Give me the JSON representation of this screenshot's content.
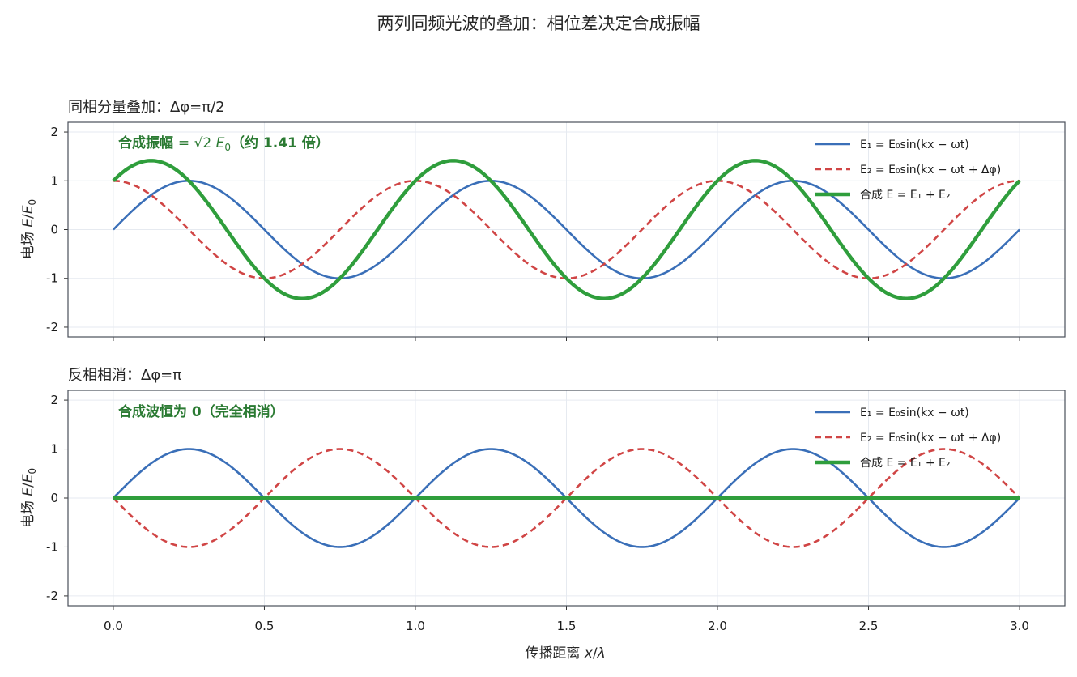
{
  "figure_title": "两列同频光波的叠加：相位差决定合成振幅",
  "x_axis_label": "传播距离 x/λ",
  "colors": {
    "e1": "#3a6fb8",
    "e2": "#d04545",
    "sum": "#2f9e3c",
    "annotation": "#2a7a32",
    "frame": "#4a4f5a",
    "grid": "#e6eaf0"
  },
  "chart_data": [
    {
      "type": "line",
      "title": "同相分量叠加：Δφ=π/2",
      "phase_difference": "π/2",
      "xlabel": "传播距离 x/λ",
      "ylabel": "电场 E/E₀",
      "xlim": [
        -0.15,
        3.15
      ],
      "ylim": [
        -2.2,
        2.2
      ],
      "xticks": [
        "0.0",
        "0.5",
        "1.0",
        "1.5",
        "2.0",
        "2.5",
        "3.0"
      ],
      "yticks": [
        "-2",
        "-1",
        "0",
        "1",
        "2"
      ],
      "grid": true,
      "legend_position": "top-right",
      "series": [
        {
          "name": "E₁ = E₀sin(kx − ωt)",
          "style": "solid",
          "formula": "sin(2πx)"
        },
        {
          "name": "E₂ = E₀sin(kx − ωt + Δφ)",
          "style": "dashed",
          "formula": "sin(2πx + π/2)"
        },
        {
          "name": "合成 E = E₁ + E₂",
          "style": "solid-thick",
          "formula": "√2·sin(2πx + π/4)"
        }
      ],
      "annotation": "合成振幅 = √2 E₀（约 1.41 倍）"
    },
    {
      "type": "line",
      "title": "反相相消：Δφ=π",
      "phase_difference": "π",
      "xlabel": "传播距离 x/λ",
      "ylabel": "电场 E/E₀",
      "xlim": [
        -0.15,
        3.15
      ],
      "ylim": [
        -2.2,
        2.2
      ],
      "xticks": [
        "0.0",
        "0.5",
        "1.0",
        "1.5",
        "2.0",
        "2.5",
        "3.0"
      ],
      "yticks": [
        "-2",
        "-1",
        "0",
        "1",
        "2"
      ],
      "grid": true,
      "legend_position": "top-right",
      "series": [
        {
          "name": "E₁ = E₀sin(kx − ωt)",
          "style": "solid",
          "formula": "sin(2πx)"
        },
        {
          "name": "E₂ = E₀sin(kx − ωt + Δφ)",
          "style": "dashed",
          "formula": "sin(2πx + π)"
        },
        {
          "name": "合成 E = E₁ + E₂",
          "style": "solid-thick",
          "formula": "0"
        }
      ],
      "annotation": "合成波恒为 0（完全相消）"
    }
  ]
}
